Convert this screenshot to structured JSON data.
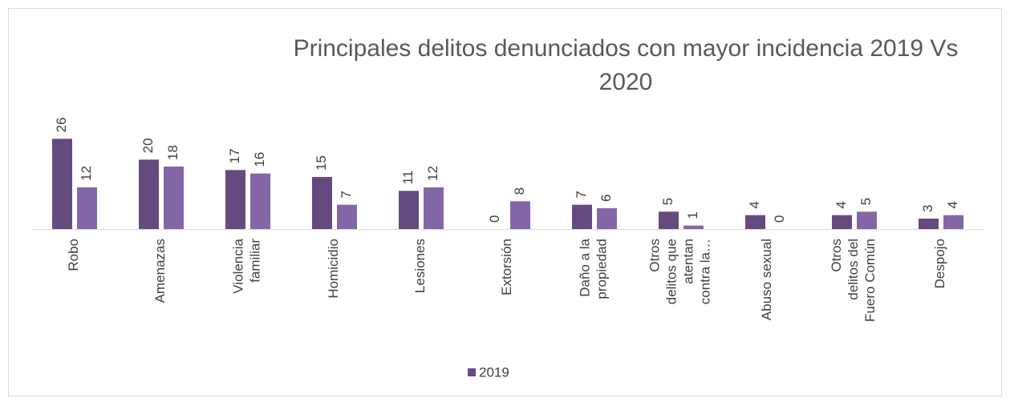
{
  "chart_data": {
    "type": "bar",
    "title": "Principales delitos denunciados  con mayor incidencia 2019 Vs 2020",
    "categories": [
      "Robo",
      "Amenazas",
      "Violencia familiar",
      "Homicidio",
      "Lesiones",
      "Extorsión",
      "Daño a la propiedad",
      "Otros delitos que atentan contra la…",
      "Abuso sexual",
      "Otros delitos del Fuero Común",
      "Despojo"
    ],
    "series": [
      {
        "name": "2019",
        "color": "#654a80",
        "values": [
          26,
          20,
          17,
          15,
          11,
          0,
          7,
          5,
          4,
          4,
          3
        ]
      },
      {
        "color": "#8466a6",
        "values": [
          12,
          18,
          16,
          7,
          12,
          8,
          6,
          1,
          0,
          5,
          4
        ]
      }
    ],
    "ylim": [
      0,
      30
    ],
    "grid": false,
    "legend": "bottom"
  }
}
